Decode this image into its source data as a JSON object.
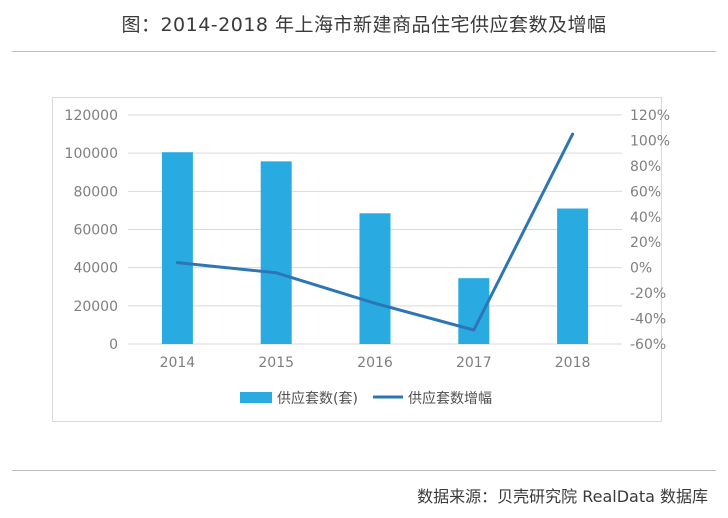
{
  "title": "图：2014-2018 年上海市新建商品住宅供应套数及增幅",
  "source": "数据来源：贝壳研究院 RealData 数据库",
  "colors": {
    "bar": "#29abe2",
    "line": "#2e75b6",
    "grid": "#d9d9d9",
    "tick": "#7f7f7f"
  },
  "chart_data": {
    "type": "bar+line",
    "categories": [
      "2014",
      "2015",
      "2016",
      "2017",
      "2018"
    ],
    "series": [
      {
        "name": "供应套数(套)",
        "type": "bar",
        "axis": "left",
        "values": [
          100500,
          95700,
          68500,
          34500,
          71000
        ]
      },
      {
        "name": "供应套数增幅",
        "type": "line",
        "axis": "right",
        "values": [
          4,
          -4,
          -28,
          -49,
          105
        ]
      }
    ],
    "left_axis": {
      "min": 0,
      "max": 120000,
      "ticks": [
        "0",
        "20000",
        "40000",
        "60000",
        "80000",
        "100000",
        "120000"
      ]
    },
    "right_axis": {
      "min": -60,
      "max": 120,
      "unit": "%",
      "ticks": [
        "-60%",
        "-40%",
        "-20%",
        "0%",
        "20%",
        "40%",
        "60%",
        "80%",
        "100%",
        "120%"
      ]
    },
    "legend": {
      "position": "bottom",
      "items": [
        "供应套数(套)",
        "供应套数增幅"
      ]
    }
  }
}
